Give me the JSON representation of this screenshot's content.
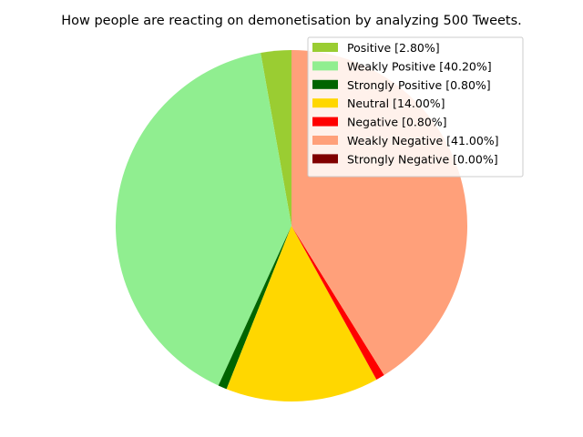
{
  "chart_data": {
    "type": "pie",
    "title": "How people are reacting on demonetisation by analyzing 500 Tweets.",
    "start_angle_deg": 90,
    "direction": "counterclockwise",
    "legend_position": "upper-right",
    "slices": [
      {
        "label": "Positive [2.80%]",
        "value": 2.8,
        "color": "#9acd32"
      },
      {
        "label": "Weakly Positive [40.20%]",
        "value": 40.2,
        "color": "#90ee90"
      },
      {
        "label": "Strongly Positive [0.80%]",
        "value": 0.8,
        "color": "#006400"
      },
      {
        "label": "Neutral [14.00%]",
        "value": 14.0,
        "color": "#ffd700"
      },
      {
        "label": "Negative [0.80%]",
        "value": 0.8,
        "color": "#ff0000"
      },
      {
        "label": "Weakly Negative [41.00%]",
        "value": 41.0,
        "color": "#ffa07a"
      },
      {
        "label": "Strongly Negative [0.00%]",
        "value": 0.0,
        "color": "#800000"
      }
    ]
  }
}
